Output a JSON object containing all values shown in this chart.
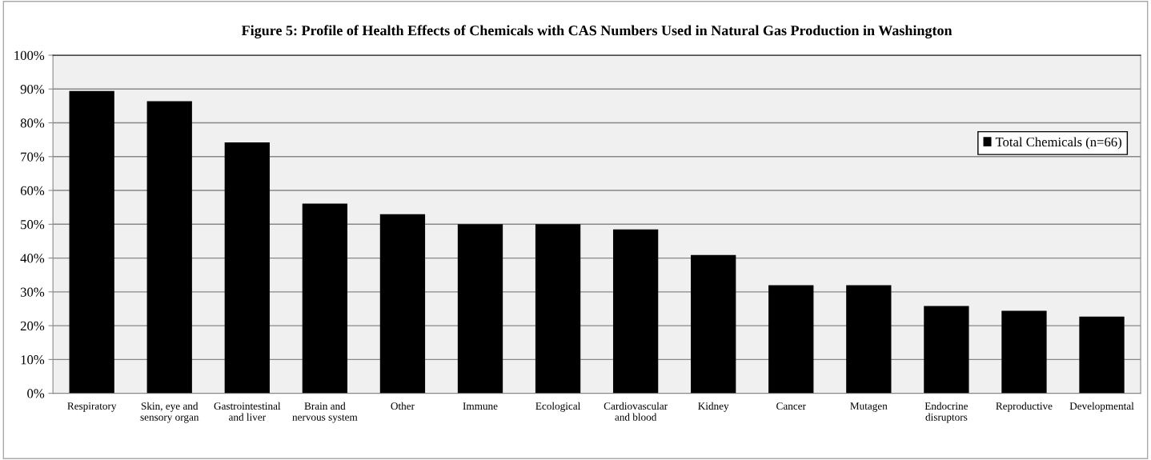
{
  "chart_data": {
    "type": "bar",
    "title": "Figure 5: Profile of Health Effects of Chemicals with CAS Numbers Used in Natural Gas Production in Washington",
    "categories": [
      "Respiratory",
      "Skin, eye and sensory organ",
      "Gastrointestinal and liver",
      "Brain and nervous system",
      "Other",
      "Immune",
      "Ecological",
      "Cardiovascular and blood",
      "Kidney",
      "Cancer",
      "Mutagen",
      "Endocrine disruptors",
      "Reproductive",
      "Developmental"
    ],
    "series": [
      {
        "name": "Total Chemicals (n=66)",
        "color": "#000000",
        "values": [
          89.4,
          86.4,
          74.2,
          56.1,
          53.0,
          50.0,
          50.0,
          48.5,
          40.9,
          32.0,
          32.0,
          25.8,
          24.4,
          22.7
        ]
      }
    ],
    "ylim": [
      0,
      100
    ],
    "yticks": [
      {
        "value": 0,
        "label": "0%"
      },
      {
        "value": 10,
        "label": "10%"
      },
      {
        "value": 20,
        "label": "20%"
      },
      {
        "value": 30,
        "label": "30%"
      },
      {
        "value": 40,
        "label": "40%"
      },
      {
        "value": 50,
        "label": "50%"
      },
      {
        "value": 60,
        "label": "60%"
      },
      {
        "value": 70,
        "label": "70%"
      },
      {
        "value": 80,
        "label": "80%"
      },
      {
        "value": 90,
        "label": "90%"
      },
      {
        "value": 100,
        "label": "100%"
      }
    ],
    "grid": "y",
    "legend": "right"
  }
}
